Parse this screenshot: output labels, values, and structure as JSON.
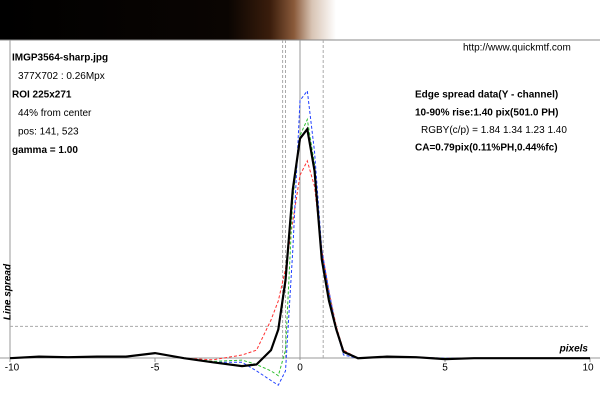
{
  "chart_data": {
    "type": "line",
    "header": {
      "url": "http://www.quickmtf.com"
    },
    "info_left": [
      {
        "text": "IMGP3564-sharp.jpg",
        "bold": true
      },
      {
        "text": "377X702 : 0.26Mpx",
        "bold": false
      },
      {
        "text": "ROI 225x271",
        "bold": true
      },
      {
        "text": "44% from center",
        "bold": false
      },
      {
        "text": "pos: 141, 523",
        "bold": false
      },
      {
        "text": "gamma = 1.00",
        "bold": true
      }
    ],
    "info_right": [
      {
        "text": "Edge spread data(Y - channel)",
        "bold": true
      },
      {
        "text": "10-90% rise:1.40 pix(501.0 PH)",
        "bold": true
      },
      {
        "text": "RGBY(c/p) = 1.84 1.34 1.23 1.40",
        "bold": false
      },
      {
        "text": "CA=0.79pix(0.11%PH,0.44%fc)",
        "bold": true
      }
    ],
    "y_label": "Line spread",
    "x_label": "pixels",
    "x": [
      -10,
      -9,
      -8,
      -7,
      -6,
      -5,
      -4,
      -3,
      -2,
      -1.5,
      -1,
      -0.75,
      -0.5,
      -0.25,
      0,
      0.25,
      0.5,
      0.75,
      1,
      1.25,
      1.5,
      2,
      3,
      4,
      5,
      6,
      7,
      8,
      9,
      10
    ],
    "series": [
      {
        "color": "#ff3030",
        "dashed": true,
        "values": [
          0,
          0.005,
          0.003,
          0.005,
          0.005,
          0.016,
          0,
          -0.005,
          0.01,
          0.025,
          0.12,
          0.18,
          0.28,
          0.43,
          0.575,
          0.62,
          0.54,
          0.34,
          0.21,
          0.1,
          0.025,
          0,
          0.005,
          0.003,
          0,
          0,
          0,
          0,
          0,
          0
        ]
      },
      {
        "color": "#30c030",
        "dashed": true,
        "values": [
          0,
          0.005,
          0.003,
          0.005,
          0.005,
          0.016,
          0,
          -0.01,
          -0.006,
          -0.02,
          -0.04,
          -0.055,
          0.025,
          0.5,
          0.7,
          0.75,
          0.61,
          0.32,
          0.2,
          0.095,
          0.02,
          0,
          0.005,
          0.003,
          0,
          0,
          0,
          0,
          0,
          0
        ]
      },
      {
        "color": "#2040ff",
        "dashed": true,
        "values": [
          0,
          0.005,
          0.003,
          0.005,
          0.005,
          0.016,
          0,
          -0.013,
          -0.013,
          -0.04,
          -0.07,
          -0.085,
          -0.04,
          0.34,
          0.81,
          0.84,
          0.65,
          0.34,
          0.21,
          0.09,
          0.01,
          0,
          0.005,
          0.003,
          0,
          0,
          0,
          0,
          0,
          0
        ]
      },
      {
        "color": "#000000",
        "dashed": false,
        "values": [
          0,
          0.005,
          0.003,
          0.005,
          0.005,
          0.016,
          0,
          -0.013,
          -0.025,
          -0.02,
          0.025,
          0.09,
          0.245,
          0.53,
          0.69,
          0.72,
          0.59,
          0.31,
          0.18,
          0.09,
          0.02,
          0,
          0.005,
          0.003,
          -0.003,
          0,
          0,
          0,
          0,
          0
        ]
      }
    ],
    "rise_lines": [
      -0.6,
      -0.5,
      0.8
    ],
    "level_line": 0.1,
    "xlim": [
      -10,
      10
    ],
    "ylim": [
      -0.1,
      1
    ],
    "xticks": [
      -10,
      -5,
      0,
      5,
      10
    ]
  }
}
